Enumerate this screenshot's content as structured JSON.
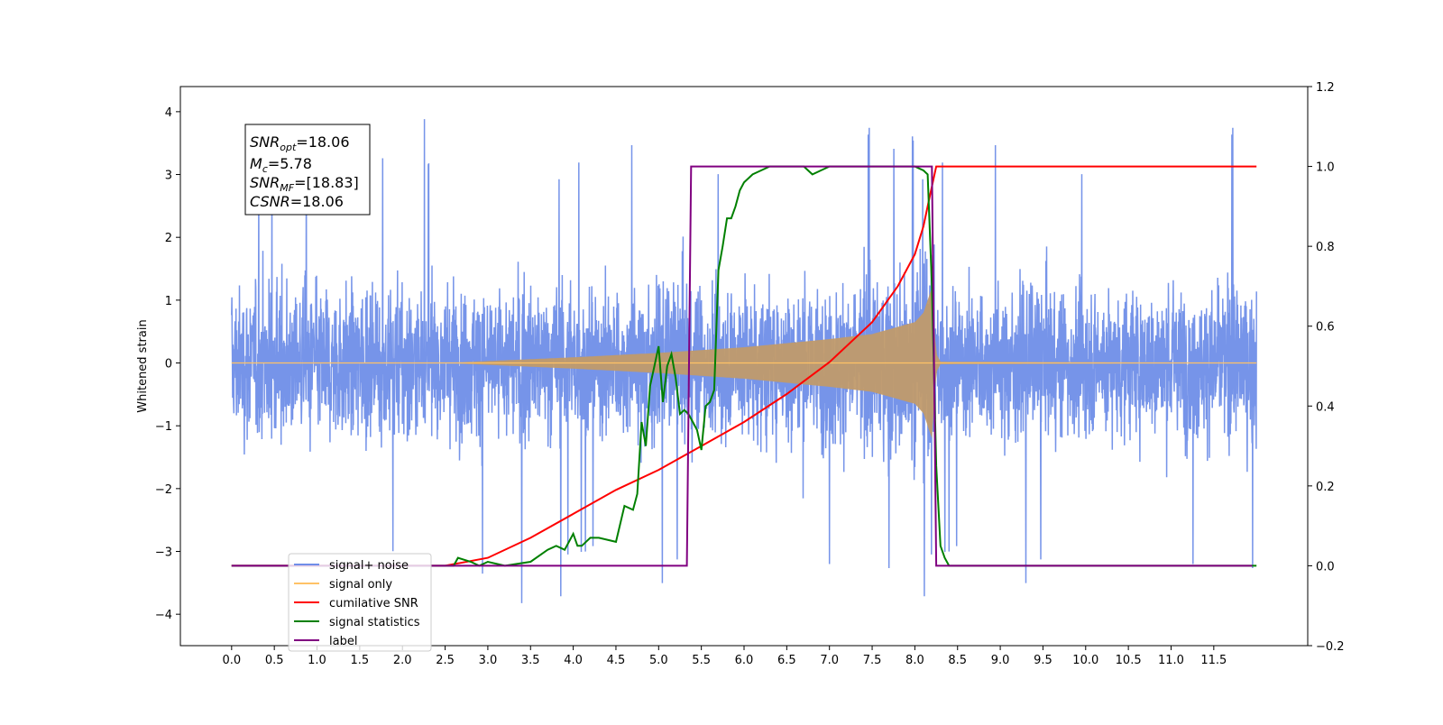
{
  "chart_data": {
    "type": "line",
    "x_ticks": [
      "0.0",
      "0.5",
      "1.0",
      "1.5",
      "2.0",
      "2.5",
      "3.0",
      "3.5",
      "4.0",
      "4.5",
      "5.0",
      "5.5",
      "6.0",
      "6.5",
      "7.0",
      "7.5",
      "8.0",
      "8.5",
      "9.0",
      "9.5",
      "10.0",
      "10.5",
      "11.0",
      "11.5"
    ],
    "y_left_ticks": [
      "4",
      "3",
      "2",
      "1",
      "0",
      "−1",
      "−2",
      "−3",
      "−4"
    ],
    "y_right_ticks": [
      "1.2",
      "1.0",
      "0.8",
      "0.6",
      "0.4",
      "0.2",
      "0.0",
      "−0.2"
    ],
    "ylabel": "Whitened strain",
    "xlim": [
      -0.6,
      12.6
    ],
    "ylim_left": [
      -4.5,
      4.4
    ],
    "ylim_right": [
      -0.2,
      1.2
    ],
    "grid": false,
    "legend_position": "lower-left",
    "annotation": {
      "snr_opt_main": "SNR",
      "snr_opt_sub": "opt",
      "snr_opt_value": "=18.06",
      "mc_main": "M",
      "mc_sub": "c",
      "mc_value": "=5.78",
      "snr_mf_main": "SNR",
      "snr_mf_sub": "MF",
      "snr_mf_value": "=[18.83]",
      "csnr_main": "CSNR",
      "csnr_value": "=18.06"
    },
    "series": [
      {
        "name": "signal+ noise",
        "color": "#6f8ee8",
        "axis": "left",
        "x_range": [
          0.0,
          12.0
        ],
        "noise_amplitude": 1.2,
        "peak_max": 4.0,
        "peak_min": -4.1
      },
      {
        "name": "signal only",
        "color": "#ffc266",
        "axis": "left",
        "x": [
          0.0,
          2.5,
          3.0,
          4.0,
          5.0,
          6.0,
          7.0,
          7.5,
          8.0,
          8.1,
          8.2,
          8.25,
          8.3,
          12.0
        ],
        "envelope": [
          0.0,
          0.0,
          0.03,
          0.09,
          0.16,
          0.25,
          0.38,
          0.46,
          0.65,
          0.8,
          1.2,
          0.15,
          0.02,
          0.0
        ]
      },
      {
        "name": "cumilative SNR",
        "color": "#ff0000",
        "axis": "right",
        "x": [
          0.0,
          2.5,
          3.0,
          3.5,
          4.0,
          4.5,
          5.0,
          5.5,
          6.0,
          6.5,
          7.0,
          7.5,
          7.8,
          8.0,
          8.1,
          8.18,
          8.25,
          12.0
        ],
        "y": [
          0.0,
          0.0,
          0.02,
          0.07,
          0.13,
          0.19,
          0.24,
          0.3,
          0.36,
          0.43,
          0.51,
          0.61,
          0.7,
          0.78,
          0.85,
          0.93,
          1.0,
          1.0
        ]
      },
      {
        "name": "signal statistics",
        "color": "#008000",
        "axis": "right",
        "x": [
          0.0,
          2.6,
          2.65,
          2.8,
          2.9,
          3.0,
          3.2,
          3.5,
          3.7,
          3.8,
          3.9,
          4.0,
          4.05,
          4.1,
          4.2,
          4.3,
          4.5,
          4.6,
          4.7,
          4.75,
          4.8,
          4.85,
          4.9,
          4.95,
          5.0,
          5.05,
          5.1,
          5.15,
          5.2,
          5.25,
          5.3,
          5.35,
          5.4,
          5.45,
          5.5,
          5.55,
          5.6,
          5.65,
          5.7,
          5.75,
          5.8,
          5.85,
          5.9,
          5.95,
          6.0,
          6.05,
          6.1,
          6.2,
          6.3,
          6.5,
          6.7,
          6.8,
          6.9,
          7.0,
          7.2,
          7.5,
          8.0,
          8.1,
          8.15,
          8.2,
          8.25,
          8.3,
          8.35,
          8.4,
          12.0
        ],
        "y": [
          0.0,
          0.0,
          0.02,
          0.01,
          0.0,
          0.01,
          0.0,
          0.01,
          0.04,
          0.05,
          0.04,
          0.08,
          0.05,
          0.05,
          0.07,
          0.07,
          0.06,
          0.15,
          0.14,
          0.18,
          0.36,
          0.3,
          0.45,
          0.5,
          0.55,
          0.41,
          0.5,
          0.53,
          0.47,
          0.38,
          0.39,
          0.38,
          0.36,
          0.34,
          0.29,
          0.4,
          0.41,
          0.44,
          0.74,
          0.8,
          0.87,
          0.87,
          0.9,
          0.94,
          0.96,
          0.97,
          0.98,
          0.99,
          1.0,
          1.0,
          1.0,
          0.98,
          0.99,
          1.0,
          1.0,
          1.0,
          1.0,
          0.99,
          0.98,
          0.7,
          0.25,
          0.05,
          0.02,
          0.0,
          0.0
        ]
      },
      {
        "name": "label",
        "color": "#800080",
        "axis": "right",
        "x": [
          0.0,
          5.33,
          5.38,
          8.2,
          8.25,
          11.95
        ],
        "y": [
          0.0,
          0.0,
          1.0,
          1.0,
          0.0,
          0.0
        ]
      }
    ]
  },
  "legend": {
    "items": [
      {
        "label": "signal+ noise",
        "color": "#6f8ee8"
      },
      {
        "label": "signal only",
        "color": "#ffc266"
      },
      {
        "label": "cumilative SNR",
        "color": "#ff0000"
      },
      {
        "label": "signal statistics",
        "color": "#008000"
      },
      {
        "label": "label",
        "color": "#800080"
      }
    ]
  }
}
